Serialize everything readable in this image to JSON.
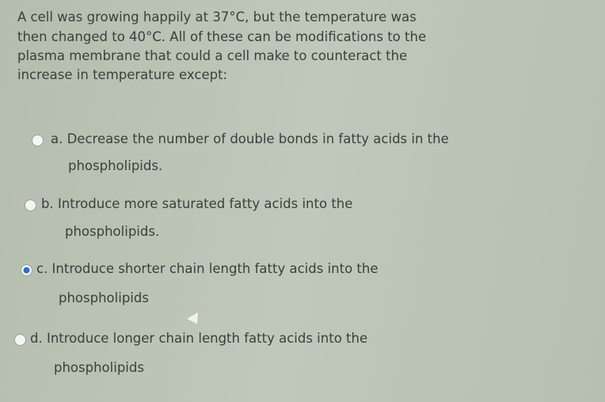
{
  "question": {
    "lines": [
      "A cell was growing happily at 37°C, but the temperature was",
      "then changed to 40°C. All of these can be modifications to the",
      "plasma membrane that could a cell make to counteract the",
      "increase in temperature except:"
    ]
  },
  "options": [
    {
      "lines": [
        "a. Decrease the number of double bonds in fatty acids in the",
        "phospholipids."
      ]
    },
    {
      "lines": [
        "b. Introduce more saturated fatty acids into the",
        "phospholipids."
      ]
    },
    {
      "lines": [
        "c. Introduce shorter chain length fatty acids into the",
        "phospholipids"
      ]
    },
    {
      "lines": [
        "d. Introduce longer chain length fatty acids into the",
        "phospholipids"
      ]
    }
  ]
}
